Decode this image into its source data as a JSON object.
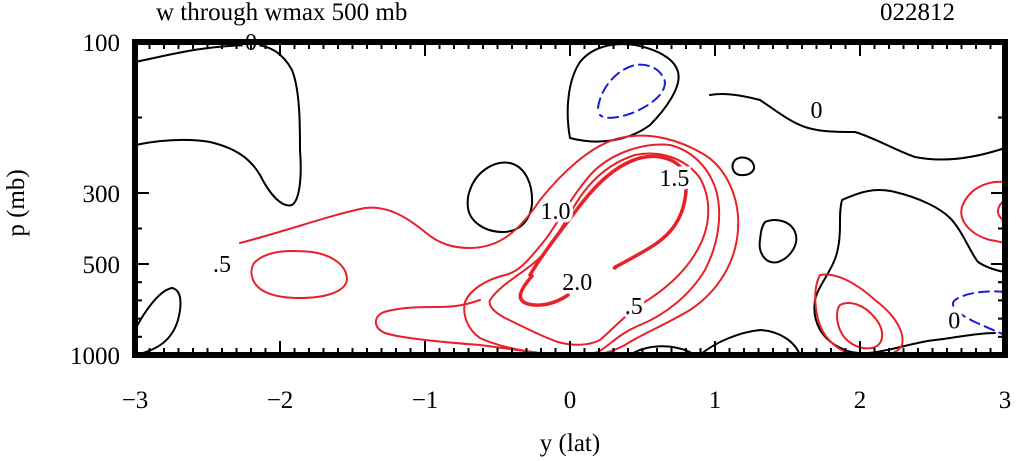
{
  "chart_data": {
    "type": "contour",
    "title": "w through wmax 500 mb",
    "case_id": "022812",
    "xlabel": "y (lat)",
    "ylabel": "p (mb)",
    "xlim": [
      -3,
      3
    ],
    "x_ticks": [
      -3,
      -2,
      -1,
      0,
      1,
      2,
      3
    ],
    "x_tick_labels": [
      "−3",
      "−2",
      "−1",
      "0",
      "1",
      "2",
      "3"
    ],
    "y_ticks": [
      100,
      300,
      500,
      1000
    ],
    "y_tick_labels": [
      "100",
      "300",
      "500",
      "1000"
    ],
    "contour_labels": [
      {
        "text": "0",
        "y": -2.2,
        "p": 100
      },
      {
        "text": "0",
        "y": 1.7,
        "p": 190
      },
      {
        "text": "0",
        "y": 2.65,
        "p": 810
      },
      {
        "text": ".5",
        "y": -2.4,
        "p": 500
      },
      {
        "text": "1.0",
        "y": -0.1,
        "p": 350
      },
      {
        "text": "1.5",
        "y": 0.72,
        "p": 280
      },
      {
        "text": "2.0",
        "y": 0.05,
        "p": 600
      },
      {
        "text": ".5",
        "y": 0.44,
        "p": 730
      }
    ],
    "colors": {
      "zero_contour": "#000000",
      "positive_contours": "#e8202a",
      "negative_contours": "#1a1ae0",
      "frame": "#000000"
    }
  }
}
